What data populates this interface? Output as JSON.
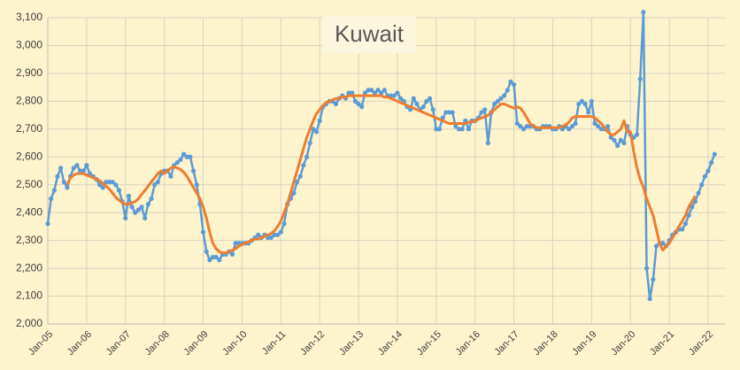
{
  "chart_data": {
    "type": "line",
    "title": "Kuwait",
    "categories": [
      "Jan-05",
      null,
      null,
      null,
      null,
      null,
      null,
      null,
      null,
      null,
      null,
      null,
      "Jan-06",
      null,
      null,
      null,
      null,
      null,
      null,
      null,
      null,
      null,
      null,
      null,
      "Jan-07",
      null,
      null,
      null,
      null,
      null,
      null,
      null,
      null,
      null,
      null,
      null,
      "Jan-08",
      null,
      null,
      null,
      null,
      null,
      null,
      null,
      null,
      null,
      null,
      null,
      "Jan-09",
      null,
      null,
      null,
      null,
      null,
      null,
      null,
      null,
      null,
      null,
      null,
      "Jan-10",
      null,
      null,
      null,
      null,
      null,
      null,
      null,
      null,
      null,
      null,
      null,
      "Jan-11",
      null,
      null,
      null,
      null,
      null,
      null,
      null,
      null,
      null,
      null,
      null,
      "Jan-12",
      null,
      null,
      null,
      null,
      null,
      null,
      null,
      null,
      null,
      null,
      null,
      "Jan-13",
      null,
      null,
      null,
      null,
      null,
      null,
      null,
      null,
      null,
      null,
      null,
      "Jan-14",
      null,
      null,
      null,
      null,
      null,
      null,
      null,
      null,
      null,
      null,
      null,
      "Jan-15",
      null,
      null,
      null,
      null,
      null,
      null,
      null,
      null,
      null,
      null,
      null,
      "Jan-16",
      null,
      null,
      null,
      null,
      null,
      null,
      null,
      null,
      null,
      null,
      null,
      "Jan-17",
      null,
      null,
      null,
      null,
      null,
      null,
      null,
      null,
      null,
      null,
      null,
      "Jan-18",
      null,
      null,
      null,
      null,
      null,
      null,
      null,
      null,
      null,
      null,
      null,
      "Jan-19",
      null,
      null,
      null,
      null,
      null,
      null,
      null,
      null,
      null,
      null,
      null,
      "Jan-20",
      null,
      null,
      null,
      null,
      null,
      null,
      null,
      null,
      null,
      null,
      null,
      "Jan-21",
      null,
      null,
      null,
      null,
      null,
      null,
      null,
      null,
      null,
      null,
      null,
      "Jan-22",
      null,
      null
    ],
    "series": [
      {
        "color": "#5b9bd5",
        "markers": true,
        "values": [
          2360,
          2450,
          2480,
          2530,
          2560,
          2510,
          2490,
          2530,
          2560,
          2570,
          2550,
          2550,
          2570,
          2540,
          2530,
          2520,
          2500,
          2490,
          2510,
          2510,
          2510,
          2500,
          2480,
          2440,
          2380,
          2460,
          2420,
          2400,
          2410,
          2420,
          2380,
          2430,
          2450,
          2500,
          2510,
          2540,
          2550,
          2550,
          2530,
          2570,
          2580,
          2590,
          2610,
          2600,
          2600,
          2550,
          2500,
          2430,
          2330,
          2260,
          2230,
          2240,
          2240,
          2230,
          2250,
          2250,
          2260,
          2250,
          2290,
          2290,
          2290,
          2290,
          2290,
          2300,
          2310,
          2320,
          2310,
          2320,
          2310,
          2310,
          2320,
          2320,
          2330,
          2360,
          2430,
          2450,
          2470,
          2510,
          2530,
          2570,
          2600,
          2650,
          2700,
          2690,
          2730,
          2780,
          2790,
          2800,
          2800,
          2790,
          2810,
          2820,
          2810,
          2830,
          2830,
          2800,
          2790,
          2780,
          2830,
          2840,
          2840,
          2830,
          2840,
          2830,
          2840,
          2820,
          2820,
          2820,
          2830,
          2810,
          2800,
          2780,
          2770,
          2810,
          2790,
          2770,
          2780,
          2800,
          2810,
          2770,
          2700,
          2700,
          2740,
          2760,
          2760,
          2760,
          2710,
          2700,
          2700,
          2730,
          2700,
          2730,
          2730,
          2740,
          2760,
          2770,
          2650,
          2760,
          2790,
          2800,
          2810,
          2820,
          2840,
          2870,
          2860,
          2720,
          2710,
          2700,
          2710,
          2710,
          2710,
          2700,
          2700,
          2710,
          2710,
          2710,
          2700,
          2700,
          2710,
          2700,
          2710,
          2700,
          2710,
          2720,
          2790,
          2800,
          2790,
          2760,
          2800,
          2720,
          2710,
          2700,
          2700,
          2710,
          2670,
          2660,
          2640,
          2660,
          2650,
          2710,
          2680,
          2670,
          2680,
          2880,
          3120,
          2200,
          2090,
          2160,
          2280,
          2290,
          2290,
          2280,
          2300,
          2320,
          2330,
          2340,
          2340,
          2360,
          2390,
          2420,
          2440,
          2470,
          2500,
          2530,
          2550,
          2580,
          2610
        ]
      },
      {
        "color": "#ed7d31",
        "markers": false,
        "values": [
          null,
          null,
          null,
          null,
          null,
          null,
          2500,
          2525,
          2535,
          2540,
          2540,
          2540,
          2535,
          2530,
          2525,
          2520,
          2515,
          2505,
          2495,
          2485,
          2470,
          2455,
          2445,
          2435,
          2430,
          2430,
          2435,
          2440,
          2450,
          2465,
          2480,
          2495,
          2510,
          2525,
          2540,
          2550,
          2540,
          2550,
          2560,
          2565,
          2560,
          2555,
          2545,
          2530,
          2510,
          2490,
          2470,
          2450,
          2420,
          2380,
          2330,
          2290,
          2270,
          2260,
          2255,
          2255,
          2260,
          2265,
          2270,
          2280,
          2285,
          2290,
          2295,
          2300,
          2305,
          2305,
          2310,
          2315,
          2320,
          2325,
          2335,
          2350,
          2370,
          2400,
          2430,
          2470,
          2510,
          2550,
          2590,
          2630,
          2670,
          2700,
          2730,
          2755,
          2770,
          2785,
          2795,
          2800,
          2805,
          2810,
          2810,
          2815,
          2815,
          2820,
          2820,
          2820,
          2820,
          2820,
          2820,
          2820,
          2820,
          2820,
          2820,
          2820,
          2815,
          2815,
          2810,
          2805,
          2800,
          2795,
          2790,
          2785,
          2780,
          2775,
          2770,
          2765,
          2760,
          2755,
          2750,
          2745,
          2740,
          2735,
          2730,
          2725,
          2720,
          2720,
          2720,
          2720,
          2720,
          2720,
          2725,
          2725,
          2730,
          2735,
          2740,
          2745,
          2750,
          2760,
          2770,
          2780,
          2790,
          2790,
          2785,
          2780,
          2775,
          2780,
          2775,
          2760,
          2740,
          2720,
          2710,
          2705,
          2705,
          2705,
          2705,
          2705,
          2705,
          2705,
          2705,
          2710,
          2715,
          2725,
          2740,
          2745,
          2745,
          2745,
          2745,
          2745,
          2745,
          2740,
          2730,
          2720,
          2705,
          2690,
          2680,
          2680,
          2690,
          2700,
          2730,
          2690,
          2690,
          2620,
          2560,
          2520,
          2490,
          2450,
          2420,
          2390,
          2340,
          2290,
          2265,
          2280,
          2290,
          2310,
          2330,
          2350,
          2370,
          2390,
          2420,
          2440,
          2460,
          null,
          null,
          null,
          null,
          null,
          null
        ]
      }
    ],
    "ylim": [
      2000,
      3100
    ],
    "yticks": [
      {
        "value": 2000,
        "label": "2,000"
      },
      {
        "value": 2100,
        "label": "2,100"
      },
      {
        "value": 2200,
        "label": "2,200"
      },
      {
        "value": 2300,
        "label": "2,300"
      },
      {
        "value": 2400,
        "label": "2,400"
      },
      {
        "value": 2500,
        "label": "2,500"
      },
      {
        "value": 2600,
        "label": "2,600"
      },
      {
        "value": 2700,
        "label": "2,700"
      },
      {
        "value": 2800,
        "label": "2,800"
      },
      {
        "value": 2900,
        "label": "2,900"
      },
      {
        "value": 3000,
        "label": "3,000"
      },
      {
        "value": 3100,
        "label": "3,100"
      }
    ],
    "grid": true
  }
}
